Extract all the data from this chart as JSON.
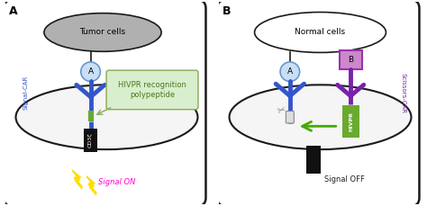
{
  "bg_color": "#ffffff",
  "box_color": "#1a1a1a",
  "tumor_cell_color": "#b0b0b0",
  "normal_cell_facecolor": "#ffffff",
  "circle_a_facecolor": "#c8dff5",
  "circle_a_edgecolor": "#6699cc",
  "box_b_facecolor": "#cc88cc",
  "box_b_edgecolor": "#9933aa",
  "car_blue": "#3355cc",
  "car_purple": "#7722aa",
  "green_seg_color": "#6aaa30",
  "green_box_light": "#d8eecc",
  "green_box_edge": "#88aa55",
  "green_arrow_color": "#44aa00",
  "black_rect_color": "#111111",
  "yellow_bolt": "#ffdd00",
  "magenta_text": "#ff00cc",
  "signal_car_label": "Signal-CAR",
  "scissors_car_label": "Scissors-CAR",
  "hivpr_label": "HIVPR recognition\npolypeptide",
  "hivpr_short": "HIVPR",
  "cd3z_label": "CD3ζ",
  "signal_on": "Signal ON",
  "signal_off": "Signal OFF",
  "tumor_label": "Tumor cells",
  "normal_label": "Normal cells",
  "panel_a_label": "A",
  "panel_b_label": "B",
  "membrane_facecolor": "#f5f5f5",
  "membrane_edgecolor": "#1a1a1a"
}
